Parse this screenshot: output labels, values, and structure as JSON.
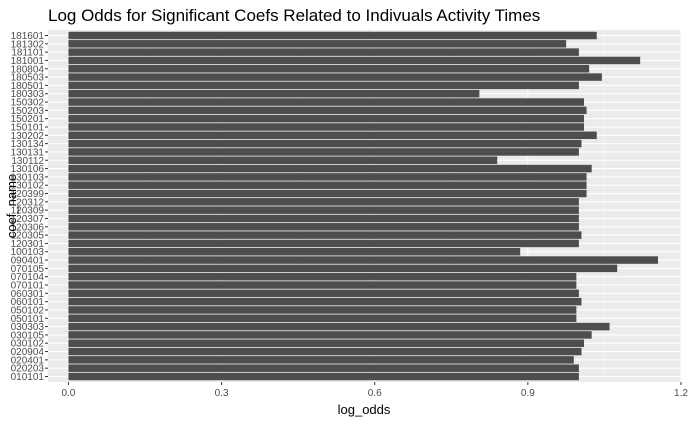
{
  "chart_data": {
    "type": "bar",
    "orientation": "horizontal",
    "title": "Log Odds for Significant Coefs Related to Indivuals Activity Times",
    "xlabel": "log_odds",
    "ylabel": "coef_name",
    "xlim": [
      -0.04,
      1.2
    ],
    "xticks": [
      0.0,
      0.3,
      0.6,
      0.9,
      1.2
    ],
    "xtick_labels": [
      "0.0",
      "0.3",
      "0.6",
      "0.9",
      "1.2"
    ],
    "grid": true,
    "legend": "none",
    "bar_color": "#4d4d4d",
    "panel_background": "#ebebeb",
    "categories": [
      "010101",
      "020203",
      "020401",
      "020904",
      "030102",
      "030105",
      "030303",
      "050101",
      "050102",
      "060101",
      "060301",
      "070101",
      "070104",
      "070105",
      "090401",
      "100103",
      "120301",
      "120305",
      "120306",
      "120307",
      "120309",
      "120312",
      "120399",
      "130102",
      "130103",
      "130106",
      "130112",
      "130131",
      "130134",
      "130202",
      "150101",
      "150201",
      "150203",
      "150302",
      "180303",
      "180501",
      "180503",
      "180804",
      "181001",
      "181101",
      "181302",
      "181601"
    ],
    "values": [
      1.0,
      1.0,
      0.99,
      1.005,
      1.01,
      1.025,
      1.06,
      0.995,
      0.995,
      1.005,
      1.0,
      0.995,
      0.995,
      1.075,
      1.155,
      0.885,
      1.0,
      1.005,
      1.0,
      1.0,
      1.0,
      1.0,
      1.015,
      1.015,
      1.015,
      1.025,
      0.84,
      1.0,
      1.005,
      1.035,
      1.01,
      1.01,
      1.015,
      1.01,
      0.805,
      1.0,
      1.045,
      1.02,
      1.12,
      1.0,
      0.975,
      1.035
    ]
  }
}
